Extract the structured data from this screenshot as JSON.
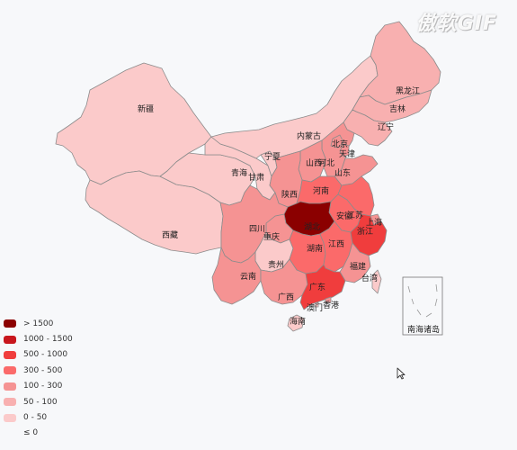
{
  "watermark": "傲软GIF",
  "colors": {
    "gt1500": "#8b0000",
    "r1000_1500": "#c8161d",
    "r500_1000": "#f03d3d",
    "r300_500": "#fb6a6a",
    "r100_300": "#f59393",
    "r50_100": "#f8b0b0",
    "r0_50": "#fbcaca",
    "le0": "#fbe0e0",
    "sea_inset_bg": "#f7f8fa"
  },
  "legend": [
    {
      "label": "> 1500",
      "color": "#8b0000"
    },
    {
      "label": "1000 - 1500",
      "color": "#c8161d"
    },
    {
      "label": "500 - 1000",
      "color": "#f03d3d"
    },
    {
      "label": "300 - 500",
      "color": "#fb6a6a"
    },
    {
      "label": "100 - 300",
      "color": "#f59393"
    },
    {
      "label": "50 - 100",
      "color": "#f8b0b0"
    },
    {
      "label": "0 - 50",
      "color": "#fbcaca"
    },
    {
      "label": "≤ 0",
      "color": ""
    }
  ],
  "provinces": {
    "xinjiang": "新疆",
    "xizang": "西藏",
    "qinghai": "青海",
    "gansu": "甘肃",
    "ningxia": "宁夏",
    "neimenggu": "内蒙古",
    "heilongjiang": "黑龙江",
    "jilin": "吉林",
    "liaoning": "辽宁",
    "beijing": "北京",
    "tianjin": "天津",
    "hebei": "河北",
    "shanxi": "山西",
    "shandong": "山东",
    "shaanxi": "陕西",
    "henan": "河南",
    "jiangsu": "江苏",
    "anhui": "安徽",
    "shanghai": "上海",
    "hubei": "湖北",
    "sichuan": "四川",
    "chongqing": "重庆",
    "zhejiang": "浙江",
    "hunan": "湖南",
    "jiangxi": "江西",
    "guizhou": "贵州",
    "yunnan": "云南",
    "guangxi": "广西",
    "guangdong": "广东",
    "fujian": "福建",
    "taiwan": "台湾",
    "xianggang": "香港",
    "aomen": "澳门",
    "hainan": "海南",
    "nanhai": "南海诸岛"
  }
}
